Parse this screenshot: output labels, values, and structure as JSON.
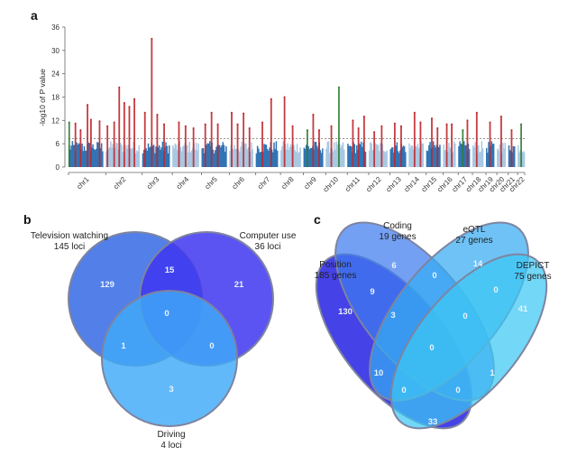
{
  "chart_data": [
    {
      "panel": "a",
      "type": "scatter",
      "subtype": "manhattan",
      "title": "",
      "xlabel": "",
      "ylabel": "-log10 of P value",
      "ylim": [
        0,
        36
      ],
      "yticks": [
        0,
        6,
        12,
        18,
        24,
        30,
        36
      ],
      "significance_threshold": 7.3,
      "grid": false,
      "categories": [
        "chr1",
        "chr2",
        "chr3",
        "chr4",
        "chr5",
        "chr6",
        "chr7",
        "chr8",
        "chr9",
        "chr10",
        "chr11",
        "chr12",
        "chr13",
        "chr14",
        "chr15",
        "chr16",
        "chr17",
        "chr18",
        "chr19",
        "chr20",
        "chr21",
        "chr22"
      ],
      "chromosome_relative_lengths": [
        249,
        243,
        198,
        191,
        181,
        171,
        159,
        146,
        141,
        136,
        135,
        134,
        115,
        107,
        102,
        90,
        83,
        78,
        59,
        63,
        48,
        51
      ],
      "colors": {
        "baseline_dark": "#2f74b5",
        "baseline_light": "#a9c8e2",
        "significant": "#c0262c",
        "significant_alt": "#2e7d32"
      },
      "peaks": [
        {
          "chr": "chr1",
          "pos": 0.02,
          "value": 11.5,
          "color": "green"
        },
        {
          "chr": "chr1",
          "pos": 0.2,
          "value": 11.2,
          "color": "red"
        },
        {
          "chr": "chr1",
          "pos": 0.35,
          "value": 9.5,
          "color": "red"
        },
        {
          "chr": "chr1",
          "pos": 0.55,
          "value": 16,
          "color": "red"
        },
        {
          "chr": "chr1",
          "pos": 0.65,
          "value": 12.2,
          "color": "red"
        },
        {
          "chr": "chr1",
          "pos": 0.9,
          "value": 11.8,
          "color": "red"
        },
        {
          "chr": "chr2",
          "pos": 0.05,
          "value": 10.5,
          "color": "red"
        },
        {
          "chr": "chr2",
          "pos": 0.25,
          "value": 11.5,
          "color": "red"
        },
        {
          "chr": "chr2",
          "pos": 0.4,
          "value": 20.5,
          "color": "red"
        },
        {
          "chr": "chr2",
          "pos": 0.55,
          "value": 16.5,
          "color": "red"
        },
        {
          "chr": "chr2",
          "pos": 0.7,
          "value": 15.5,
          "color": "red"
        },
        {
          "chr": "chr2",
          "pos": 0.85,
          "value": 17.5,
          "color": "red"
        },
        {
          "chr": "chr3",
          "pos": 0.1,
          "value": 14,
          "color": "red"
        },
        {
          "chr": "chr3",
          "pos": 0.35,
          "value": 33,
          "color": "red"
        },
        {
          "chr": "chr3",
          "pos": 0.55,
          "value": 13.5,
          "color": "red"
        },
        {
          "chr": "chr3",
          "pos": 0.8,
          "value": 11,
          "color": "red"
        },
        {
          "chr": "chr4",
          "pos": 0.25,
          "value": 11.5,
          "color": "red"
        },
        {
          "chr": "chr4",
          "pos": 0.5,
          "value": 10.5,
          "color": "red"
        },
        {
          "chr": "chr4",
          "pos": 0.8,
          "value": 10.0,
          "color": "red"
        },
        {
          "chr": "chr5",
          "pos": 0.15,
          "value": 11,
          "color": "red"
        },
        {
          "chr": "chr5",
          "pos": 0.4,
          "value": 14,
          "color": "red"
        },
        {
          "chr": "chr5",
          "pos": 0.65,
          "value": 11,
          "color": "red"
        },
        {
          "chr": "chr6",
          "pos": 0.1,
          "value": 14,
          "color": "red"
        },
        {
          "chr": "chr6",
          "pos": 0.35,
          "value": 11,
          "color": "red"
        },
        {
          "chr": "chr6",
          "pos": 0.6,
          "value": 13.8,
          "color": "red"
        },
        {
          "chr": "chr6",
          "pos": 0.85,
          "value": 10,
          "color": "red"
        },
        {
          "chr": "chr7",
          "pos": 0.3,
          "value": 11.5,
          "color": "red"
        },
        {
          "chr": "chr7",
          "pos": 0.7,
          "value": 17.5,
          "color": "red"
        },
        {
          "chr": "chr8",
          "pos": 0.2,
          "value": 18,
          "color": "red"
        },
        {
          "chr": "chr8",
          "pos": 0.6,
          "value": 10.5,
          "color": "red"
        },
        {
          "chr": "chr9",
          "pos": 0.2,
          "value": 9.5,
          "color": "green"
        },
        {
          "chr": "chr9",
          "pos": 0.5,
          "value": 13.5,
          "color": "red"
        },
        {
          "chr": "chr9",
          "pos": 0.8,
          "value": 9.5,
          "color": "red"
        },
        {
          "chr": "chr10",
          "pos": 0.3,
          "value": 10.5,
          "color": "red"
        },
        {
          "chr": "chr10",
          "pos": 0.7,
          "value": 20.5,
          "color": "green"
        },
        {
          "chr": "chr11",
          "pos": 0.3,
          "value": 12,
          "color": "red"
        },
        {
          "chr": "chr11",
          "pos": 0.6,
          "value": 10,
          "color": "red"
        },
        {
          "chr": "chr11",
          "pos": 0.9,
          "value": 13,
          "color": "red"
        },
        {
          "chr": "chr12",
          "pos": 0.3,
          "value": 9,
          "color": "red"
        },
        {
          "chr": "chr12",
          "pos": 0.7,
          "value": 10.5,
          "color": "red"
        },
        {
          "chr": "chr13",
          "pos": 0.3,
          "value": 11.2,
          "color": "red"
        },
        {
          "chr": "chr13",
          "pos": 0.7,
          "value": 10.5,
          "color": "red"
        },
        {
          "chr": "chr14",
          "pos": 0.4,
          "value": 14,
          "color": "red"
        },
        {
          "chr": "chr14",
          "pos": 0.8,
          "value": 11.5,
          "color": "red"
        },
        {
          "chr": "chr15",
          "pos": 0.4,
          "value": 12.5,
          "color": "red"
        },
        {
          "chr": "chr15",
          "pos": 0.8,
          "value": 10,
          "color": "red"
        },
        {
          "chr": "chr16",
          "pos": 0.3,
          "value": 11,
          "color": "red"
        },
        {
          "chr": "chr16",
          "pos": 0.7,
          "value": 11,
          "color": "red"
        },
        {
          "chr": "chr17",
          "pos": 0.4,
          "value": 9.5,
          "color": "green"
        },
        {
          "chr": "chr17",
          "pos": 0.8,
          "value": 12,
          "color": "red"
        },
        {
          "chr": "chr18",
          "pos": 0.4,
          "value": 14,
          "color": "red"
        },
        {
          "chr": "chr19",
          "pos": 0.5,
          "value": 11.5,
          "color": "red"
        },
        {
          "chr": "chr20",
          "pos": 0.5,
          "value": 13,
          "color": "red"
        },
        {
          "chr": "chr21",
          "pos": 0.5,
          "value": 9.5,
          "color": "red"
        },
        {
          "chr": "chr22",
          "pos": 0.5,
          "value": 11,
          "color": "green"
        }
      ]
    },
    {
      "panel": "b",
      "type": "venn",
      "title": "",
      "sets": [
        {
          "name": "Television watching",
          "count_label": "145 loci",
          "total": 145,
          "color": "#4a78e8"
        },
        {
          "name": "Computer use",
          "count_label": "36 loci",
          "total": 36,
          "color": "#4640e6"
        },
        {
          "name": "Driving",
          "count_label": "4 loci",
          "total": 4,
          "color": "#4aa6f2"
        }
      ],
      "regions": [
        {
          "sets": [
            "Television watching"
          ],
          "value": 129
        },
        {
          "sets": [
            "Computer use"
          ],
          "value": 21
        },
        {
          "sets": [
            "Driving"
          ],
          "value": 3
        },
        {
          "sets": [
            "Television watching",
            "Computer use"
          ],
          "value": 15
        },
        {
          "sets": [
            "Television watching",
            "Driving"
          ],
          "value": 1
        },
        {
          "sets": [
            "Computer use",
            "Driving"
          ],
          "value": 0
        },
        {
          "sets": [
            "Television watching",
            "Computer use",
            "Driving"
          ],
          "value": 0
        }
      ]
    },
    {
      "panel": "c",
      "type": "venn",
      "title": "",
      "sets": [
        {
          "name": "Position",
          "count_label": "185 genes",
          "total": 185,
          "color": "#3b3ae0"
        },
        {
          "name": "Coding",
          "count_label": "19 genes",
          "total": 19,
          "color": "#3f7be8"
        },
        {
          "name": "eQTL",
          "count_label": "27 genes",
          "total": 27,
          "color": "#34a6ee"
        },
        {
          "name": "DEPICT",
          "count_label": "75 genes",
          "total": 75,
          "color": "#3dc4f0"
        }
      ],
      "regions": [
        {
          "sets": [
            "Position"
          ],
          "value": 130
        },
        {
          "sets": [
            "Coding"
          ],
          "value": 6
        },
        {
          "sets": [
            "eQTL"
          ],
          "value": 14
        },
        {
          "sets": [
            "DEPICT"
          ],
          "value": 41
        },
        {
          "sets": [
            "Position",
            "Coding"
          ],
          "value": 9
        },
        {
          "sets": [
            "Coding",
            "eQTL"
          ],
          "value": 0
        },
        {
          "sets": [
            "eQTL",
            "DEPICT"
          ],
          "value": 0
        },
        {
          "sets": [
            "Position",
            "Coding",
            "eQTL"
          ],
          "value": 3
        },
        {
          "sets": [
            "Coding",
            "eQTL",
            "DEPICT"
          ],
          "value": 0
        },
        {
          "sets": [
            "Position",
            "Coding",
            "eQTL",
            "DEPICT"
          ],
          "value": 0
        },
        {
          "sets": [
            "Position",
            "eQTL"
          ],
          "value": 10
        },
        {
          "sets": [
            "Coding",
            "DEPICT"
          ],
          "value": 1
        },
        {
          "sets": [
            "Position",
            "eQTL",
            "DEPICT"
          ],
          "value": 0
        },
        {
          "sets": [
            "Position",
            "Coding",
            "DEPICT"
          ],
          "value": 0
        },
        {
          "sets": [
            "Position",
            "DEPICT"
          ],
          "value": 33
        }
      ]
    }
  ],
  "panels": {
    "a": {
      "label": "a"
    },
    "b": {
      "label": "b"
    },
    "c": {
      "label": "c"
    }
  }
}
